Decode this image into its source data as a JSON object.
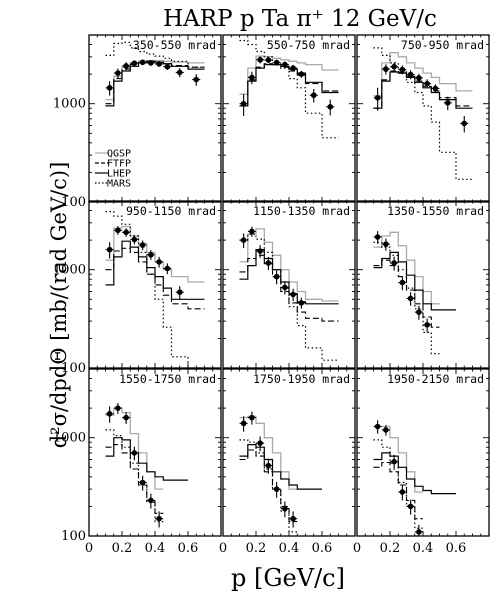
{
  "chart_data": {
    "type": "line",
    "title": "HARP p Ta π⁺ 12 GeV/c",
    "xlabel": "p [GeV/c]",
    "ylabel": "d²σ/dpdΘ [mb/(rad GeV/c)]",
    "x_scale": "linear",
    "y_scale": "log",
    "xlim": [
      0,
      0.8
    ],
    "ylim": [
      100,
      5000
    ],
    "x_tick_labels": [
      "0",
      "0.2",
      "0.4",
      "0.6"
    ],
    "y_tick_labels": [
      "100",
      "1000"
    ],
    "grid": false,
    "legend": {
      "placement": "lower-left of first panel",
      "entries": [
        {
          "name": "QGSP",
          "style": "solid",
          "color": "#aaaaaa"
        },
        {
          "name": "FTFP",
          "style": "dashed",
          "color": "#000000"
        },
        {
          "name": "LHEP",
          "style": "solid",
          "color": "#000000"
        },
        {
          "name": "MARS",
          "style": "dotted",
          "color": "#000000"
        }
      ]
    },
    "bin_edges": [
      0.1,
      0.15,
      0.2,
      0.25,
      0.3,
      0.35,
      0.4,
      0.45,
      0.5,
      0.6,
      0.7
    ],
    "panels": [
      {
        "range": "350-550 mrad",
        "data": {
          "x": [
            0.125,
            0.175,
            0.225,
            0.275,
            0.325,
            0.375,
            0.425,
            0.475,
            0.55,
            0.65
          ],
          "y": [
            1450,
            2050,
            2420,
            2580,
            2640,
            2600,
            2540,
            2380,
            2080,
            1760
          ],
          "yerr": [
            240,
            230,
            220,
            190,
            170,
            170,
            170,
            170,
            220,
            240
          ]
        },
        "qgsp": [
          1100,
          1900,
          2350,
          2600,
          2700,
          2750,
          2750,
          2700,
          2650,
          2600
        ],
        "ftfp": [
          1000,
          1800,
          2250,
          2500,
          2620,
          2700,
          2650,
          2550,
          2450,
          2350
        ],
        "lhep": [
          950,
          1700,
          2150,
          2400,
          2600,
          2700,
          2650,
          2550,
          2400,
          2250
        ],
        "mars": [
          3100,
          4100,
          4200,
          3700,
          3400,
          3200,
          3050,
          2900,
          2700,
          2350
        ]
      },
      {
        "range": "550-750 mrad",
        "data": {
          "x": [
            0.125,
            0.175,
            0.225,
            0.275,
            0.325,
            0.375,
            0.425,
            0.475,
            0.55,
            0.65
          ],
          "y": [
            1000,
            1850,
            2800,
            2780,
            2620,
            2500,
            2300,
            2000,
            1220,
            930
          ],
          "yerr": [
            250,
            270,
            230,
            200,
            190,
            190,
            180,
            160,
            190,
            170
          ]
        },
        "qgsp": [
          1250,
          2300,
          3050,
          3000,
          2900,
          2800,
          2700,
          2600,
          2500,
          2200
        ],
        "ftfp": [
          950,
          1750,
          2350,
          2550,
          2500,
          2350,
          2150,
          1950,
          1600,
          1350
        ],
        "lhep": [
          950,
          1700,
          2300,
          2500,
          2500,
          2400,
          2250,
          2050,
          1650,
          1300
        ],
        "mars": [
          4400,
          4000,
          3400,
          3000,
          2650,
          2300,
          1800,
          1450,
          800,
          450
        ]
      },
      {
        "range": "750-950 mrad",
        "data": {
          "x": [
            0.125,
            0.175,
            0.225,
            0.275,
            0.325,
            0.375,
            0.425,
            0.475,
            0.55,
            0.65
          ],
          "y": [
            1150,
            2250,
            2380,
            2220,
            1980,
            1830,
            1600,
            1430,
            1020,
            630
          ],
          "yerr": [
            300,
            270,
            250,
            230,
            210,
            180,
            170,
            150,
            160,
            120
          ]
        },
        "qgsp": [
          1200,
          2600,
          3300,
          3000,
          2600,
          2300,
          2050,
          1850,
          1600,
          1350
        ],
        "ftfp": [
          900,
          1750,
          2150,
          2100,
          1900,
          1700,
          1500,
          1350,
          1150,
          950
        ],
        "lhep": [
          900,
          1700,
          2100,
          2050,
          1850,
          1650,
          1450,
          1300,
          1100,
          900
        ],
        "mars": [
          3700,
          3100,
          2600,
          2100,
          1650,
          1300,
          950,
          650,
          320,
          170
        ]
      },
      {
        "range": "950-1150 mrad",
        "data": {
          "x": [
            0.125,
            0.175,
            0.225,
            0.275,
            0.325,
            0.375,
            0.425,
            0.475,
            0.55
          ],
          "y": [
            1600,
            2520,
            2400,
            2030,
            1780,
            1420,
            1200,
            1030,
            590
          ],
          "yerr": [
            300,
            260,
            240,
            220,
            200,
            160,
            150,
            130,
            90
          ]
        },
        "qgsp": [
          1250,
          2650,
          2750,
          2200,
          1850,
          1500,
          1200,
          1000,
          850,
          750
        ],
        "ftfp": [
          1000,
          1550,
          1650,
          1500,
          1200,
          900,
          700,
          550,
          450,
          400
        ],
        "lhep": [
          700,
          1350,
          1950,
          1700,
          1350,
          1050,
          850,
          650,
          500,
          500
        ],
        "mars": [
          3900,
          3500,
          2900,
          2200,
          1500,
          900,
          500,
          260,
          130,
          100
        ]
      },
      {
        "range": "1150-1350 mrad",
        "data": {
          "x": [
            0.125,
            0.175,
            0.225,
            0.275,
            0.325,
            0.375,
            0.425,
            0.475
          ],
          "y": [
            2000,
            2450,
            1550,
            1170,
            850,
            660,
            560,
            460
          ],
          "yerr": [
            340,
            290,
            230,
            180,
            140,
            100,
            80,
            60
          ]
        },
        "qgsp": [
          1200,
          2300,
          2600,
          1900,
          1400,
          1000,
          750,
          600,
          500,
          480
        ],
        "ftfp": [
          950,
          1300,
          1400,
          1150,
          850,
          600,
          460,
          370,
          320,
          300
        ],
        "lhep": [
          800,
          1100,
          1600,
          1300,
          1000,
          750,
          570,
          470,
          450,
          450
        ],
        "mars": [
          2000,
          2300,
          2050,
          1500,
          1000,
          650,
          420,
          270,
          160,
          120
        ]
      },
      {
        "range": "1350-1550 mrad",
        "data": {
          "x": [
            0.125,
            0.175,
            0.225,
            0.275,
            0.325,
            0.375,
            0.425
          ],
          "y": [
            2150,
            1820,
            1170,
            740,
            510,
            370,
            275
          ],
          "yerr": [
            320,
            260,
            190,
            120,
            80,
            60,
            45
          ]
        },
        "qgsp": [
          1700,
          2200,
          2400,
          1750,
          1250,
          850,
          600,
          450
        ],
        "ftfp": [
          1100,
          1250,
          1100,
          850,
          620,
          450,
          330,
          260
        ],
        "lhep": [
          1050,
          1300,
          1500,
          1200,
          880,
          620,
          450,
          390,
          390
        ],
        "mars": [
          1900,
          1700,
          1400,
          1000,
          650,
          400,
          230,
          140
        ]
      },
      {
        "range": "1550-1750 mrad",
        "data": {
          "x": [
            0.125,
            0.175,
            0.225,
            0.275,
            0.325,
            0.375,
            0.425
          ],
          "y": [
            1750,
            2000,
            1600,
            700,
            350,
            230,
            150
          ],
          "yerr": [
            330,
            250,
            220,
            110,
            60,
            40,
            28
          ]
        },
        "qgsp": [
          1700,
          2000,
          1800,
          1100,
          700,
          450,
          300
        ],
        "ftfp": [
          800,
          850,
          700,
          480,
          330,
          230,
          170
        ],
        "lhep": [
          650,
          1000,
          950,
          700,
          550,
          450,
          400,
          370,
          370
        ],
        "mars": [
          1200,
          1050,
          800,
          550,
          350,
          220,
          140
        ]
      },
      {
        "range": "1750-1950 mrad",
        "data": {
          "x": [
            0.125,
            0.175,
            0.225,
            0.275,
            0.325,
            0.375,
            0.425
          ],
          "y": [
            1400,
            1600,
            880,
            520,
            300,
            190,
            150
          ],
          "yerr": [
            250,
            240,
            150,
            90,
            55,
            35,
            28
          ]
        },
        "qgsp": [
          1600,
          1650,
          1400,
          1000,
          700,
          450,
          300
        ],
        "ftfp": [
          600,
          750,
          650,
          450,
          300,
          200,
          140
        ],
        "lhep": [
          650,
          850,
          800,
          600,
          450,
          380,
          330,
          300,
          300
        ],
        "mars": [
          950,
          900,
          700,
          480,
          300,
          180,
          110
        ]
      },
      {
        "range": "1950-2150 mrad",
        "data": {
          "x": [
            0.125,
            0.175,
            0.225,
            0.275,
            0.325,
            0.375
          ],
          "y": [
            1300,
            1200,
            570,
            280,
            200,
            110
          ],
          "yerr": [
            200,
            150,
            100,
            50,
            35,
            20
          ]
        },
        "qgsp": [
          1300,
          1300,
          1000,
          700,
          450,
          280
        ],
        "ftfp": [
          500,
          560,
          450,
          330,
          230,
          150
        ],
        "lhep": [
          600,
          700,
          650,
          500,
          380,
          320,
          290,
          270,
          270
        ],
        "mars": [
          950,
          800,
          550,
          350,
          200,
          120
        ]
      }
    ]
  }
}
